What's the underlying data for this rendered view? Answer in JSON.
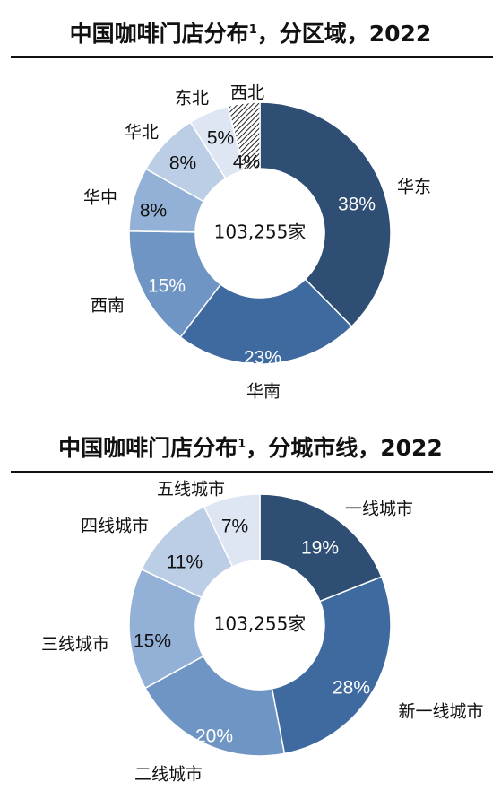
{
  "charts": [
    {
      "title": "中国咖啡门店分布",
      "title_sup": "1",
      "title_suffix": "，分区域，2022",
      "center_text": "103,255家"
    },
    {
      "title": "中国咖啡门店分布",
      "title_sup": "1",
      "title_suffix": "，分城市线，2022",
      "center_text": "103,255家"
    }
  ],
  "chart_data": [
    {
      "type": "pie",
      "variant": "donut",
      "title": "中国咖啡门店分布1，分区域，2022",
      "total_label": "103,255家",
      "categories": [
        "华东",
        "华南",
        "西南",
        "华中",
        "华北",
        "东北",
        "西北"
      ],
      "values": [
        38,
        23,
        15,
        8,
        8,
        5,
        4
      ],
      "value_labels": [
        "38%",
        "23%",
        "15%",
        "8%",
        "8%",
        "5%",
        "4%"
      ],
      "colors": [
        "#2e4e73",
        "#3f6aa0",
        "#6f95c5",
        "#93b1d6",
        "#bccde6",
        "#dde6f2",
        "pattern"
      ]
    },
    {
      "type": "pie",
      "variant": "donut",
      "title": "中国咖啡门店分布1，分城市线，2022",
      "total_label": "103,255家",
      "categories": [
        "一线城市",
        "新一线城市",
        "二线城市",
        "三线城市",
        "四线城市",
        "五线城市"
      ],
      "values": [
        19,
        28,
        20,
        15,
        11,
        7
      ],
      "value_labels": [
        "19%",
        "28%",
        "20%",
        "15%",
        "11%",
        "7%"
      ],
      "colors": [
        "#2e4e73",
        "#3f6aa0",
        "#6f95c5",
        "#93b1d6",
        "#bccde6",
        "#dde6f2"
      ]
    }
  ]
}
